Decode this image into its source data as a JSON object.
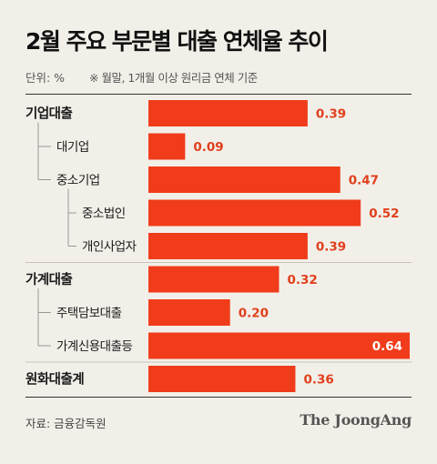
{
  "title": "2월 주요 부문별 대출 연체율 추이",
  "unit_label": "단위: %",
  "note": "※ 월말, 1개월 이상 원리금 연체 기준",
  "source": "자료: 금융감독원",
  "brand": "The JoongAng",
  "colors": {
    "bar": "#f03c1a",
    "value_text": "#e0401c",
    "value_text_inside": "#ffffff"
  },
  "chart_data": {
    "type": "bar",
    "orientation": "horizontal",
    "title": "2월 주요 부문별 대출 연체율 추이",
    "unit": "%",
    "categories": [
      "기업대출",
      "대기업",
      "중소기업",
      "중소법인",
      "개인사업자",
      "가계대출",
      "주택담보대출",
      "가계신용대출등",
      "원화대출계"
    ],
    "values": [
      0.39,
      0.09,
      0.47,
      0.52,
      0.39,
      0.32,
      0.2,
      0.64,
      0.36
    ],
    "value_labels": [
      "0.39",
      "0.09",
      "0.47",
      "0.52",
      "0.39",
      "0.32",
      "0.20",
      "0.64",
      "0.36"
    ],
    "levels": [
      0,
      1,
      1,
      2,
      2,
      0,
      1,
      1,
      0
    ],
    "grid": false,
    "legend": "none"
  }
}
